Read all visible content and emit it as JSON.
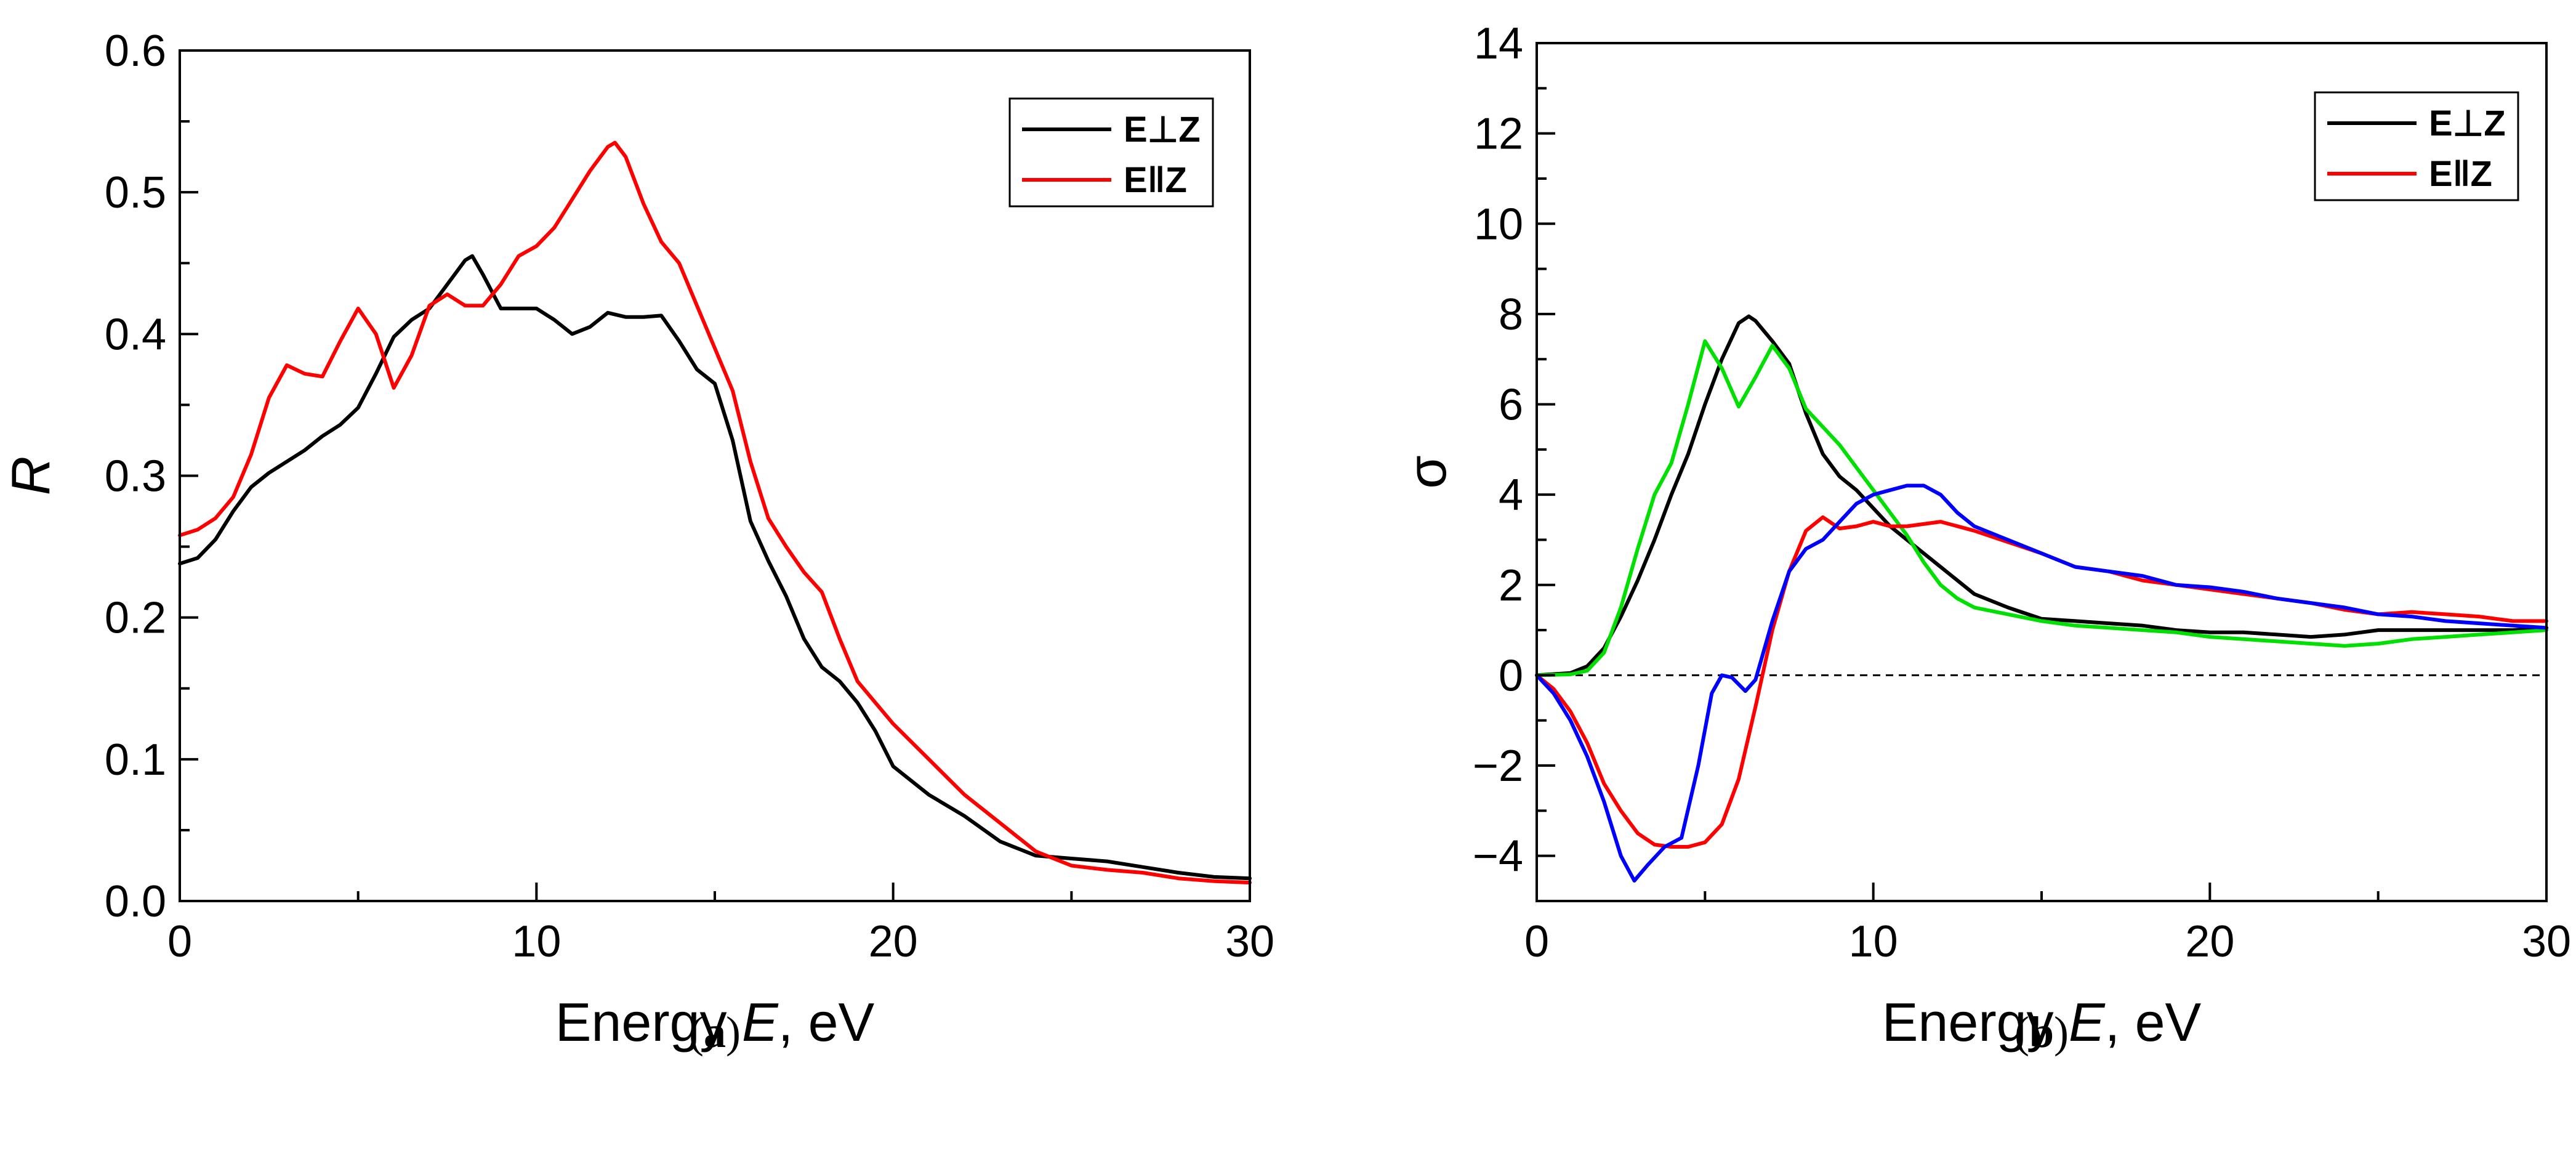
{
  "chart_data": [
    {
      "type": "line",
      "panel_label": "(a)",
      "panel_letter": "a",
      "xlabel_prefix": "Energy ",
      "xlabel_var": "E",
      "xlabel_suffix": ", eV",
      "ylabel": "R",
      "xlim": [
        0,
        30
      ],
      "ylim": [
        0,
        0.6
      ],
      "xticks": [
        0,
        10,
        20,
        30
      ],
      "xtick_labels": [
        "0",
        "10",
        "20",
        "30"
      ],
      "yticks": [
        0,
        0.1,
        0.2,
        0.3,
        0.4,
        0.5,
        0.6
      ],
      "ytick_labels": [
        "0.0",
        "0.1",
        "0.2",
        "0.3",
        "0.4",
        "0.5",
        "0.6"
      ],
      "legend_position": "top-right",
      "legend": [
        {
          "label": "E⊥Z",
          "color": "#000000"
        },
        {
          "label": "E‖Z",
          "color": "#ff0000"
        }
      ],
      "series": [
        {
          "name": "E⊥Z",
          "color": "#000000",
          "x": [
            0,
            0.5,
            1,
            1.5,
            2,
            2.5,
            3,
            3.5,
            4,
            4.5,
            5,
            5.5,
            6,
            6.5,
            7,
            7.5,
            8,
            8.2,
            8.5,
            9,
            9.5,
            10,
            10.5,
            11,
            11.5,
            12,
            12.5,
            13,
            13.5,
            14,
            14.5,
            15,
            15.5,
            16,
            16.5,
            17,
            17.5,
            18,
            18.5,
            19,
            19.5,
            20,
            21,
            22,
            23,
            24,
            25,
            26,
            27,
            28,
            29,
            30
          ],
          "y": [
            0.238,
            0.242,
            0.255,
            0.275,
            0.292,
            0.302,
            0.31,
            0.318,
            0.328,
            0.336,
            0.348,
            0.372,
            0.398,
            0.41,
            0.418,
            0.435,
            0.452,
            0.455,
            0.442,
            0.418,
            0.418,
            0.418,
            0.41,
            0.4,
            0.405,
            0.415,
            0.412,
            0.412,
            0.413,
            0.395,
            0.375,
            0.365,
            0.325,
            0.268,
            0.24,
            0.215,
            0.185,
            0.165,
            0.155,
            0.14,
            0.12,
            0.095,
            0.075,
            0.06,
            0.042,
            0.032,
            0.03,
            0.028,
            0.024,
            0.02,
            0.017,
            0.016
          ]
        },
        {
          "name": "E‖Z",
          "color": "#ff0000",
          "x": [
            0,
            0.5,
            1,
            1.5,
            2,
            2.5,
            3,
            3.5,
            4,
            4.5,
            5,
            5.5,
            6,
            6.5,
            7,
            7.5,
            8,
            8.5,
            9,
            9.5,
            10,
            10.5,
            11,
            11.5,
            12,
            12.2,
            12.5,
            13,
            13.5,
            14,
            14.5,
            15,
            15.5,
            16,
            16.5,
            17,
            17.5,
            18,
            18.5,
            19,
            19.5,
            20,
            21,
            22,
            23,
            24,
            25,
            26,
            27,
            28,
            29,
            30
          ],
          "y": [
            0.258,
            0.262,
            0.27,
            0.285,
            0.315,
            0.355,
            0.378,
            0.372,
            0.37,
            0.395,
            0.418,
            0.4,
            0.362,
            0.385,
            0.42,
            0.428,
            0.42,
            0.42,
            0.435,
            0.455,
            0.462,
            0.475,
            0.495,
            0.515,
            0.532,
            0.535,
            0.525,
            0.492,
            0.465,
            0.45,
            0.42,
            0.39,
            0.36,
            0.31,
            0.27,
            0.25,
            0.232,
            0.218,
            0.185,
            0.155,
            0.14,
            0.125,
            0.1,
            0.075,
            0.055,
            0.035,
            0.025,
            0.022,
            0.02,
            0.016,
            0.014,
            0.013
          ]
        }
      ]
    },
    {
      "type": "line",
      "panel_label": "(b)",
      "panel_letter": "b",
      "xlabel_prefix": "Energy ",
      "xlabel_var": "E",
      "xlabel_suffix": ", eV",
      "ylabel": "σ",
      "xlim": [
        0,
        30
      ],
      "ylim": [
        -5,
        14
      ],
      "xticks": [
        0,
        10,
        20,
        30
      ],
      "xtick_labels": [
        "0",
        "10",
        "20",
        "30"
      ],
      "yticks": [
        -4,
        -2,
        0,
        2,
        4,
        6,
        8,
        10,
        12,
        14
      ],
      "ytick_labels": [
        "−4",
        "−2",
        "0",
        "2",
        "4",
        "6",
        "8",
        "10",
        "12",
        "14"
      ],
      "zero_line": "dashed",
      "legend_position": "top-right",
      "legend": [
        {
          "label": "E⊥Z",
          "color": "#000000"
        },
        {
          "label": "E‖Z",
          "color": "#ff0000"
        }
      ],
      "series": [
        {
          "name": "E⊥Z real",
          "color": "#000000",
          "x": [
            0,
            1,
            1.5,
            2,
            2.5,
            3,
            3.5,
            4,
            4.5,
            5,
            5.5,
            6,
            6.3,
            6.5,
            7,
            7.5,
            8,
            8.5,
            9,
            9.5,
            10,
            10.5,
            11,
            12,
            13,
            14,
            15,
            16,
            17,
            18,
            19,
            20,
            21,
            22,
            23,
            24,
            25,
            26,
            27,
            28,
            29,
            30
          ],
          "y": [
            0,
            0.05,
            0.2,
            0.6,
            1.3,
            2.1,
            3.0,
            4.0,
            4.9,
            6.0,
            7.0,
            7.8,
            7.95,
            7.85,
            7.4,
            6.9,
            5.8,
            4.9,
            4.4,
            4.1,
            3.7,
            3.3,
            3.0,
            2.4,
            1.8,
            1.5,
            1.25,
            1.2,
            1.15,
            1.1,
            1.0,
            0.95,
            0.95,
            0.9,
            0.85,
            0.9,
            1.0,
            1.0,
            1.0,
            1.0,
            1.0,
            1.05
          ]
        },
        {
          "name": "green",
          "color": "#00e000",
          "x": [
            0,
            1,
            1.5,
            2,
            2.5,
            3,
            3.5,
            4,
            4.5,
            5,
            5.5,
            6,
            6.5,
            7,
            7.5,
            8,
            8.5,
            9,
            9.5,
            10,
            10.5,
            11,
            11.5,
            12,
            12.5,
            13,
            14,
            15,
            16,
            17,
            18,
            19,
            20,
            21,
            22,
            23,
            24,
            25,
            26,
            27,
            28,
            29,
            30
          ],
          "y": [
            0,
            0.02,
            0.1,
            0.5,
            1.5,
            2.8,
            4.0,
            4.7,
            6.0,
            7.4,
            6.8,
            5.95,
            6.6,
            7.3,
            6.8,
            5.9,
            5.5,
            5.1,
            4.6,
            4.1,
            3.6,
            3.1,
            2.5,
            2.0,
            1.7,
            1.5,
            1.35,
            1.2,
            1.1,
            1.05,
            1.0,
            0.95,
            0.85,
            0.8,
            0.75,
            0.7,
            0.65,
            0.7,
            0.8,
            0.85,
            0.9,
            0.95,
            1.0
          ]
        },
        {
          "name": "E‖Z imag",
          "color": "#ff0000",
          "x": [
            0,
            0.5,
            1,
            1.5,
            2,
            2.5,
            3,
            3.5,
            4,
            4.5,
            5,
            5.5,
            6,
            6.5,
            7,
            7.5,
            8,
            8.5,
            9,
            9.5,
            10,
            10.5,
            11,
            12,
            13,
            14,
            15,
            16,
            17,
            18,
            19,
            20,
            21,
            22,
            23,
            24,
            25,
            26,
            27,
            28,
            29,
            30
          ],
          "y": [
            0,
            -0.3,
            -0.8,
            -1.5,
            -2.4,
            -3.0,
            -3.5,
            -3.75,
            -3.8,
            -3.8,
            -3.7,
            -3.3,
            -2.3,
            -0.7,
            1.0,
            2.3,
            3.2,
            3.5,
            3.25,
            3.3,
            3.4,
            3.3,
            3.3,
            3.4,
            3.2,
            2.95,
            2.7,
            2.4,
            2.3,
            2.1,
            2.0,
            1.9,
            1.8,
            1.7,
            1.6,
            1.45,
            1.35,
            1.4,
            1.35,
            1.3,
            1.2,
            1.2
          ]
        },
        {
          "name": "blue",
          "color": "#0000ff",
          "x": [
            0,
            0.5,
            1,
            1.5,
            2,
            2.5,
            2.9,
            3.3,
            3.8,
            4.3,
            4.8,
            5.2,
            5.5,
            5.8,
            6.2,
            6.5,
            7,
            7.5,
            8,
            8.5,
            9,
            9.5,
            10,
            10.5,
            11,
            11.5,
            12,
            12.5,
            13,
            14,
            15,
            16,
            17,
            18,
            19,
            20,
            21,
            22,
            23,
            24,
            25,
            26,
            27,
            28,
            29,
            30
          ],
          "y": [
            0,
            -0.4,
            -1.0,
            -1.8,
            -2.8,
            -4.0,
            -4.55,
            -4.2,
            -3.8,
            -3.6,
            -2.0,
            -0.4,
            0.0,
            -0.05,
            -0.35,
            -0.1,
            1.2,
            2.3,
            2.8,
            3.0,
            3.4,
            3.8,
            4.0,
            4.1,
            4.2,
            4.2,
            4.0,
            3.6,
            3.3,
            3.0,
            2.7,
            2.4,
            2.3,
            2.2,
            2.0,
            1.95,
            1.85,
            1.7,
            1.6,
            1.5,
            1.35,
            1.3,
            1.2,
            1.15,
            1.1,
            1.05
          ]
        }
      ]
    }
  ]
}
